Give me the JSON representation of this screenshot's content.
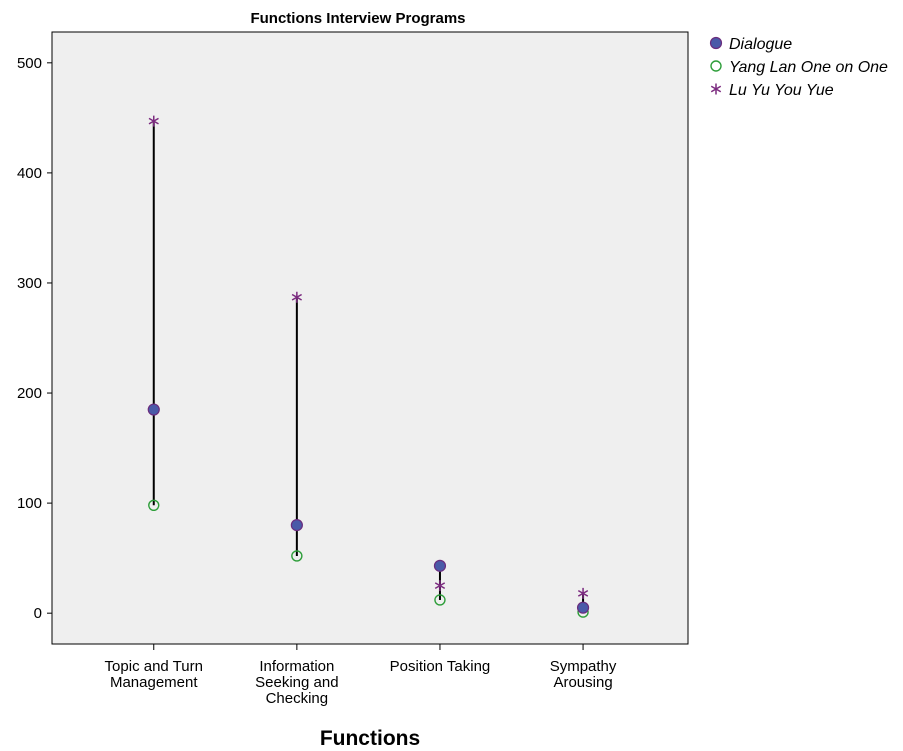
{
  "chart_data": {
    "type": "scatter",
    "title": "Functions Interview  Programs",
    "xlabel": "Functions",
    "ylabel": "",
    "ylim": [
      -28,
      528
    ],
    "yticks": [
      0,
      100,
      200,
      300,
      400,
      500
    ],
    "categories": [
      [
        "Topic and Turn",
        "Management"
      ],
      [
        "Information",
        "Seeking and",
        "Checking"
      ],
      [
        "Position Taking"
      ],
      [
        "Sympathy",
        "Arousing"
      ]
    ],
    "range_lines": true,
    "series": [
      {
        "name": "Dialogue",
        "marker": "filled-circle",
        "color": "#6a2c7e",
        "values": [
          185,
          80,
          43,
          5
        ]
      },
      {
        "name": "Yang Lan One on One",
        "marker": "open-circle",
        "color": "#2e9e3a",
        "values": [
          98,
          52,
          12,
          1
        ]
      },
      {
        "name": "Lu Yu You Yue",
        "marker": "star",
        "color": "#7b2a7f",
        "values": [
          447,
          287,
          25,
          18
        ]
      }
    ],
    "legend_position": "right-top",
    "plot_background": "#efefef",
    "grid": false
  }
}
